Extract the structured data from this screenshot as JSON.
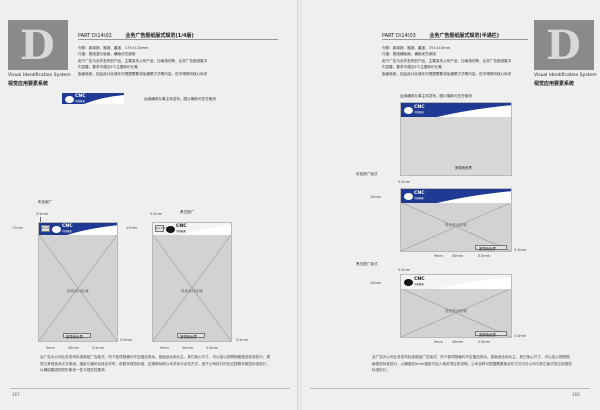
{
  "left": {
    "badge_letter": "D",
    "badge_en": "Visual Identification System",
    "badge_zh": "视觉应用要素系统",
    "part_code": "PART D\\14\\02",
    "part_title": "业务广告报纸版式规范(1/4版)",
    "specs": [
      "刊物：新闻报、晚报、晨报、175×110mm",
      "尺度：报纸竖长版面，横版优先使用",
      "用于广告与合作发布的产品，主要宣传公司产品，比喻规划等，业务广告报纸集中",
      "内容要，要求不超过4个主要标识元素",
      "版面使用，如由设计区域在可根据需要添加通联方式等内容，但不得修改核心标识"
    ],
    "logo_caption": "运用横排办事主体发布、图片最新可在在使用",
    "col_caption_1": "彩色报广",
    "col_caption_2": "黑白报广",
    "logo_text": "CNC",
    "logo_sub": "中国网通",
    "dim_top": "5.5mm",
    "dim_side": "17mm",
    "dim_bottom_a": "9mm",
    "dim_bottom_b": "30mm",
    "dim_bottom_c": "5.5mm",
    "dim_bottom_d": "5.5mm",
    "design_area": "协业设计区域",
    "slogan": "宽带我世界",
    "corner_label": "MLS 260mm",
    "footer": "此广告为公司业务发布标准报纸广告版式，所下各项规格均不应擅自改动。竖版适合用为主，其它版心尺寸，可以加以按照规格规范标准执行。视觉与其他技术文字使用。报纸与通讯实体合作时，依照本规范标准，应清晰标明公司关系与合作方式。各子公司执行时也应按照本规范标准执行，以确保集团视觉形象统一性与规范性要求。",
    "page_number": "167"
  },
  "right": {
    "badge_letter": "D",
    "badge_en": "Visual Identification System",
    "badge_zh": "视觉应用要素系统",
    "part_code": "PART D\\14\\03",
    "part_title": "业务广告报纸版式规范(半通栏)",
    "specs": [
      "刊物：新闻报、晚报、晨报、75×110mm",
      "尺度：报纸横版面，横版优先使用",
      "用于广告与合作发布的产品，主要宣传公司产品，比喻规划等，业务广告报纸集中",
      "内容要，要求不超过4个主要标识元素",
      "版面使用，如由设计区域在可根据需要添加通联方式等内容，但不得修改核心标识"
    ],
    "logo_caption": "运用横排办事主体发布、图片最新可在在使用",
    "col_caption_1": "彩色报广版式",
    "col_caption_2": "黑白报广版式",
    "logo_text": "CNC",
    "logo_sub": "中国网通",
    "dim_top": "5.5mm",
    "dim_side": "14mm",
    "dim_bottom_a": "9mm",
    "dim_bottom_b": "30mm",
    "dim_bottom_c": "5.5mm",
    "dim_bottom_d": "5.5mm",
    "design_area": "协业设计区域",
    "slogan": "宽带我世界",
    "footer": "此广告为公司业务发布标准报纸广告版式，所下各项规格均不应擅自改动。竖版适合用为主，其它版心尺寸，可以加以按照规格规范标准执行，以确保在8mm报纸中加入相关项目的说明，公司名称可根据需要按合作方式与分公司与其它版式的应用规范标准执行。",
    "page_number": "168"
  },
  "colors": {
    "brand_blue": "#1f3a93",
    "gray_box": "#d2d2d2",
    "badge_gray": "#8a8a8a"
  }
}
